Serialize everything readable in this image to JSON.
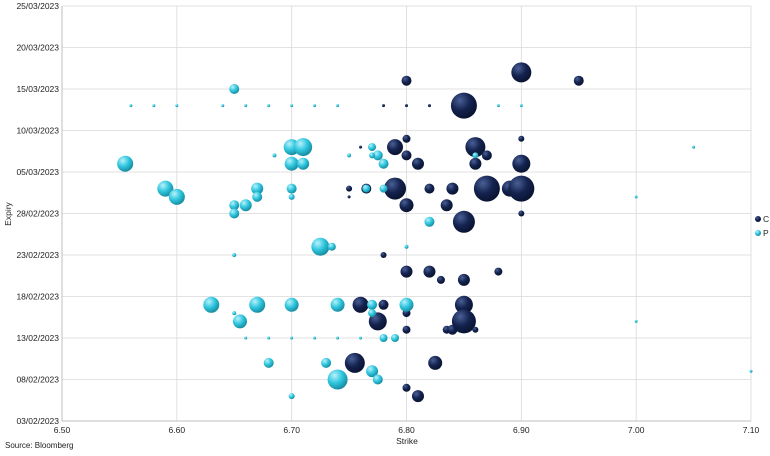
{
  "source_note": "Source: Bloomberg",
  "colors": {
    "C": "#14234f",
    "P": "#2ec6de",
    "grid": "#d9d9d9",
    "axis": "#bfbfbf"
  },
  "chart_data": {
    "type": "scatter",
    "xlabel": "Strike",
    "ylabel": "Expiry",
    "xlim": [
      6.5,
      7.1
    ],
    "ylim": [
      "03/02/2023",
      "25/03/2023"
    ],
    "x_ticks": [
      "6.50",
      "6.60",
      "6.70",
      "6.80",
      "6.90",
      "7.00",
      "7.10"
    ],
    "y_ticks": [
      "03/02/2023",
      "08/02/2023",
      "13/02/2023",
      "18/02/2023",
      "23/02/2023",
      "28/02/2023",
      "05/03/2023",
      "10/03/2023",
      "15/03/2023",
      "20/03/2023",
      "25/03/2023"
    ],
    "grid": true,
    "bubble": true,
    "legend": {
      "position": "right",
      "entries": [
        "C",
        "P"
      ]
    },
    "series": [
      {
        "name": "C",
        "points": [
          {
            "x": 6.9,
            "y": "17/03/2023",
            "size": 10
          },
          {
            "x": 6.8,
            "y": "16/03/2023",
            "size": 5
          },
          {
            "x": 6.95,
            "y": "16/03/2023",
            "size": 5
          },
          {
            "x": 6.85,
            "y": "13/03/2023",
            "size": 13
          },
          {
            "x": 6.78,
            "y": "13/03/2023",
            "size": 1.5
          },
          {
            "x": 6.8,
            "y": "13/03/2023",
            "size": 1.5
          },
          {
            "x": 6.82,
            "y": "13/03/2023",
            "size": 1.5
          },
          {
            "x": 6.9,
            "y": "09/03/2023",
            "size": 3
          },
          {
            "x": 6.8,
            "y": "09/03/2023",
            "size": 4
          },
          {
            "x": 6.79,
            "y": "08/03/2023",
            "size": 8
          },
          {
            "x": 6.76,
            "y": "08/03/2023",
            "size": 1.5
          },
          {
            "x": 6.86,
            "y": "08/03/2023",
            "size": 10
          },
          {
            "x": 6.8,
            "y": "07/03/2023",
            "size": 5
          },
          {
            "x": 6.87,
            "y": "07/03/2023",
            "size": 5
          },
          {
            "x": 6.81,
            "y": "06/03/2023",
            "size": 6
          },
          {
            "x": 6.86,
            "y": "06/03/2023",
            "size": 6
          },
          {
            "x": 6.9,
            "y": "06/03/2023",
            "size": 9
          },
          {
            "x": 6.75,
            "y": "03/03/2023",
            "size": 3
          },
          {
            "x": 6.765,
            "y": "03/03/2023",
            "size": 5
          },
          {
            "x": 6.79,
            "y": "03/03/2023",
            "size": 11
          },
          {
            "x": 6.82,
            "y": "03/03/2023",
            "size": 5
          },
          {
            "x": 6.84,
            "y": "03/03/2023",
            "size": 6
          },
          {
            "x": 6.87,
            "y": "03/03/2023",
            "size": 13
          },
          {
            "x": 6.89,
            "y": "03/03/2023",
            "size": 8
          },
          {
            "x": 6.9,
            "y": "03/03/2023",
            "size": 13
          },
          {
            "x": 6.75,
            "y": "02/03/2023",
            "size": 1.5
          },
          {
            "x": 6.8,
            "y": "01/03/2023",
            "size": 7
          },
          {
            "x": 6.835,
            "y": "01/03/2023",
            "size": 6
          },
          {
            "x": 6.9,
            "y": "28/02/2023",
            "size": 3
          },
          {
            "x": 6.85,
            "y": "27/02/2023",
            "size": 11
          },
          {
            "x": 6.78,
            "y": "23/02/2023",
            "size": 3
          },
          {
            "x": 6.8,
            "y": "21/02/2023",
            "size": 6
          },
          {
            "x": 6.82,
            "y": "21/02/2023",
            "size": 6
          },
          {
            "x": 6.83,
            "y": "20/02/2023",
            "size": 4
          },
          {
            "x": 6.85,
            "y": "20/02/2023",
            "size": 6
          },
          {
            "x": 6.88,
            "y": "21/02/2023",
            "size": 4
          },
          {
            "x": 6.76,
            "y": "17/02/2023",
            "size": 8
          },
          {
            "x": 6.78,
            "y": "17/02/2023",
            "size": 5
          },
          {
            "x": 6.8,
            "y": "17/02/2023",
            "size": 6
          },
          {
            "x": 6.85,
            "y": "17/02/2023",
            "size": 9
          },
          {
            "x": 6.775,
            "y": "15/02/2023",
            "size": 9
          },
          {
            "x": 6.8,
            "y": "16/02/2023",
            "size": 4
          },
          {
            "x": 6.8,
            "y": "14/02/2023",
            "size": 4
          },
          {
            "x": 6.835,
            "y": "14/02/2023",
            "size": 4
          },
          {
            "x": 6.84,
            "y": "14/02/2023",
            "size": 5
          },
          {
            "x": 6.85,
            "y": "15/02/2023",
            "size": 12
          },
          {
            "x": 6.86,
            "y": "14/02/2023",
            "size": 3
          },
          {
            "x": 6.755,
            "y": "10/02/2023",
            "size": 10
          },
          {
            "x": 6.825,
            "y": "10/02/2023",
            "size": 7
          },
          {
            "x": 6.8,
            "y": "07/02/2023",
            "size": 4
          },
          {
            "x": 6.81,
            "y": "06/02/2023",
            "size": 6
          }
        ]
      },
      {
        "name": "P",
        "points": [
          {
            "x": 6.65,
            "y": "15/03/2023",
            "size": 5
          },
          {
            "x": 6.56,
            "y": "13/03/2023",
            "size": 1.5
          },
          {
            "x": 6.58,
            "y": "13/03/2023",
            "size": 1.5
          },
          {
            "x": 6.6,
            "y": "13/03/2023",
            "size": 1.5
          },
          {
            "x": 6.64,
            "y": "13/03/2023",
            "size": 1.5
          },
          {
            "x": 6.66,
            "y": "13/03/2023",
            "size": 1.5
          },
          {
            "x": 6.68,
            "y": "13/03/2023",
            "size": 1.5
          },
          {
            "x": 6.7,
            "y": "13/03/2023",
            "size": 1.5
          },
          {
            "x": 6.72,
            "y": "13/03/2023",
            "size": 1.5
          },
          {
            "x": 6.74,
            "y": "13/03/2023",
            "size": 1.5
          },
          {
            "x": 6.88,
            "y": "13/03/2023",
            "size": 1.5
          },
          {
            "x": 6.9,
            "y": "13/03/2023",
            "size": 1.5
          },
          {
            "x": 6.7,
            "y": "08/03/2023",
            "size": 8
          },
          {
            "x": 6.71,
            "y": "08/03/2023",
            "size": 9
          },
          {
            "x": 6.77,
            "y": "08/03/2023",
            "size": 4
          },
          {
            "x": 6.775,
            "y": "07/03/2023",
            "size": 5
          },
          {
            "x": 6.75,
            "y": "07/03/2023",
            "size": 2
          },
          {
            "x": 6.77,
            "y": "07/03/2023",
            "size": 3
          },
          {
            "x": 6.685,
            "y": "07/03/2023",
            "size": 2
          },
          {
            "x": 6.7,
            "y": "06/03/2023",
            "size": 7
          },
          {
            "x": 6.71,
            "y": "06/03/2023",
            "size": 6
          },
          {
            "x": 6.78,
            "y": "06/03/2023",
            "size": 5
          },
          {
            "x": 6.555,
            "y": "06/03/2023",
            "size": 8
          },
          {
            "x": 6.86,
            "y": "07/03/2023",
            "size": 3
          },
          {
            "x": 7.05,
            "y": "08/03/2023",
            "size": 1.5
          },
          {
            "x": 6.59,
            "y": "03/03/2023",
            "size": 8
          },
          {
            "x": 6.6,
            "y": "02/03/2023",
            "size": 8
          },
          {
            "x": 6.67,
            "y": "03/03/2023",
            "size": 6
          },
          {
            "x": 6.7,
            "y": "03/03/2023",
            "size": 5
          },
          {
            "x": 6.765,
            "y": "03/03/2023",
            "size": 4
          },
          {
            "x": 6.78,
            "y": "03/03/2023",
            "size": 4
          },
          {
            "x": 6.66,
            "y": "01/03/2023",
            "size": 6
          },
          {
            "x": 6.67,
            "y": "02/03/2023",
            "size": 5
          },
          {
            "x": 6.65,
            "y": "01/03/2023",
            "size": 5
          },
          {
            "x": 6.65,
            "y": "28/02/2023",
            "size": 5
          },
          {
            "x": 6.7,
            "y": "02/03/2023",
            "size": 3
          },
          {
            "x": 7.0,
            "y": "02/03/2023",
            "size": 1.5
          },
          {
            "x": 6.82,
            "y": "27/02/2023",
            "size": 5
          },
          {
            "x": 6.725,
            "y": "24/02/2023",
            "size": 9
          },
          {
            "x": 6.735,
            "y": "24/02/2023",
            "size": 4
          },
          {
            "x": 6.8,
            "y": "24/02/2023",
            "size": 2
          },
          {
            "x": 6.65,
            "y": "23/02/2023",
            "size": 2
          },
          {
            "x": 6.63,
            "y": "17/02/2023",
            "size": 8
          },
          {
            "x": 6.67,
            "y": "17/02/2023",
            "size": 8
          },
          {
            "x": 6.7,
            "y": "17/02/2023",
            "size": 7
          },
          {
            "x": 6.74,
            "y": "17/02/2023",
            "size": 7
          },
          {
            "x": 6.77,
            "y": "17/02/2023",
            "size": 5
          },
          {
            "x": 6.8,
            "y": "17/02/2023",
            "size": 7
          },
          {
            "x": 6.65,
            "y": "16/02/2023",
            "size": 2
          },
          {
            "x": 6.655,
            "y": "15/02/2023",
            "size": 7
          },
          {
            "x": 6.77,
            "y": "16/02/2023",
            "size": 4
          },
          {
            "x": 7.0,
            "y": "15/02/2023",
            "size": 1.5
          },
          {
            "x": 6.66,
            "y": "13/02/2023",
            "size": 1.5
          },
          {
            "x": 6.68,
            "y": "13/02/2023",
            "size": 1.5
          },
          {
            "x": 6.7,
            "y": "13/02/2023",
            "size": 1.5
          },
          {
            "x": 6.72,
            "y": "13/02/2023",
            "size": 1.5
          },
          {
            "x": 6.74,
            "y": "13/02/2023",
            "size": 1.5
          },
          {
            "x": 6.76,
            "y": "13/02/2023",
            "size": 1.5
          },
          {
            "x": 6.78,
            "y": "13/02/2023",
            "size": 4
          },
          {
            "x": 6.79,
            "y": "13/02/2023",
            "size": 4
          },
          {
            "x": 6.68,
            "y": "10/02/2023",
            "size": 5
          },
          {
            "x": 6.73,
            "y": "10/02/2023",
            "size": 5
          },
          {
            "x": 6.74,
            "y": "08/02/2023",
            "size": 10
          },
          {
            "x": 6.77,
            "y": "09/02/2023",
            "size": 6
          },
          {
            "x": 6.775,
            "y": "08/02/2023",
            "size": 5
          },
          {
            "x": 6.7,
            "y": "06/02/2023",
            "size": 3
          },
          {
            "x": 7.1,
            "y": "09/02/2023",
            "size": 1.5
          }
        ]
      }
    ]
  }
}
